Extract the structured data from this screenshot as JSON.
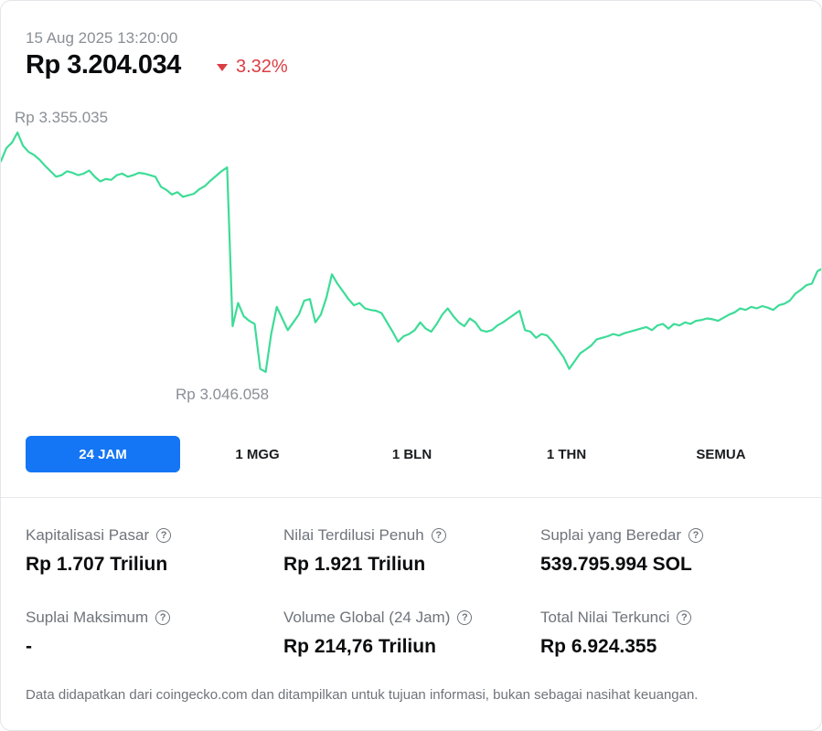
{
  "header": {
    "timestamp": "15 Aug 2025 13:20:00",
    "price": "Rp 3.204.034",
    "change": "3.32%",
    "change_direction": "down",
    "change_color": "#dc3d43"
  },
  "chart_data": {
    "type": "line",
    "line_color": "#3ddc97",
    "high_label": "Rp 3.355.035",
    "low_label": "Rp 3.046.058",
    "y_high": 3355035,
    "y_low": 3046058,
    "values": [
      3318000,
      3335000,
      3342000,
      3355035,
      3338000,
      3330000,
      3326000,
      3320000,
      3312000,
      3305000,
      3298000,
      3300000,
      3305000,
      3303000,
      3300000,
      3302000,
      3306000,
      3298000,
      3292000,
      3295000,
      3294000,
      3300000,
      3302000,
      3298000,
      3300000,
      3303000,
      3302000,
      3300000,
      3298000,
      3285000,
      3281000,
      3275000,
      3278000,
      3272000,
      3274000,
      3276000,
      3282000,
      3286000,
      3293000,
      3299000,
      3305000,
      3310000,
      3105000,
      3135000,
      3118000,
      3112000,
      3108000,
      3050000,
      3046058,
      3095000,
      3130000,
      3115000,
      3100000,
      3110000,
      3120000,
      3138000,
      3140000,
      3110000,
      3120000,
      3142000,
      3172000,
      3160000,
      3150000,
      3140000,
      3132000,
      3135000,
      3128000,
      3126000,
      3125000,
      3122000,
      3110000,
      3098000,
      3085000,
      3092000,
      3095000,
      3100000,
      3110000,
      3102000,
      3098000,
      3108000,
      3120000,
      3128000,
      3118000,
      3110000,
      3105000,
      3115000,
      3110000,
      3100000,
      3098000,
      3100000,
      3106000,
      3110000,
      3115000,
      3120000,
      3125000,
      3100000,
      3098000,
      3090000,
      3095000,
      3093000,
      3085000,
      3075000,
      3065000,
      3050000,
      3060000,
      3070000,
      3075000,
      3080000,
      3088000,
      3090000,
      3092000,
      3095000,
      3093000,
      3096000,
      3098000,
      3100000,
      3102000,
      3104000,
      3100000,
      3106000,
      3108000,
      3102000,
      3108000,
      3106000,
      3110000,
      3108000,
      3112000,
      3113000,
      3115000,
      3114000,
      3112000,
      3116000,
      3120000,
      3123000,
      3128000,
      3126000,
      3130000,
      3128000,
      3131000,
      3129000,
      3126000,
      3132000,
      3134000,
      3138000,
      3147000,
      3152000,
      3158000,
      3160000,
      3176000,
      3180000
    ],
    "xlabel": "",
    "ylabel": ""
  },
  "tabs": [
    {
      "label": "24 JAM",
      "active": true
    },
    {
      "label": "1 MGG",
      "active": false
    },
    {
      "label": "1 BLN",
      "active": false
    },
    {
      "label": "1 THN",
      "active": false
    },
    {
      "label": "SEMUA",
      "active": false
    }
  ],
  "stats": [
    {
      "label": "Kapitalisasi Pasar",
      "value": "Rp 1.707 Triliun",
      "help_icon": "question-circle-icon"
    },
    {
      "label": "Nilai Terdilusi Penuh",
      "value": "Rp 1.921 Triliun",
      "help_icon": "question-circle-icon"
    },
    {
      "label": "Suplai yang Beredar",
      "value": "539.795.994 SOL",
      "help_icon": "question-circle-icon"
    },
    {
      "label": "Suplai Maksimum",
      "value": "-",
      "help_icon": "question-circle-icon"
    },
    {
      "label": "Volume Global (24 Jam)",
      "value": "Rp 214,76 Triliun",
      "help_icon": "question-circle-icon"
    },
    {
      "label": "Total Nilai Terkunci",
      "value": "Rp 6.924.355",
      "help_icon": "question-circle-icon"
    }
  ],
  "help_glyph": "?",
  "disclaimer": "Data didapatkan dari coingecko.com dan ditampilkan untuk tujuan informasi, bukan sebagai nasihat keuangan.",
  "colors": {
    "active_tab": "#1476f5",
    "line": "#3ddc97",
    "negative": "#dc3d43"
  }
}
